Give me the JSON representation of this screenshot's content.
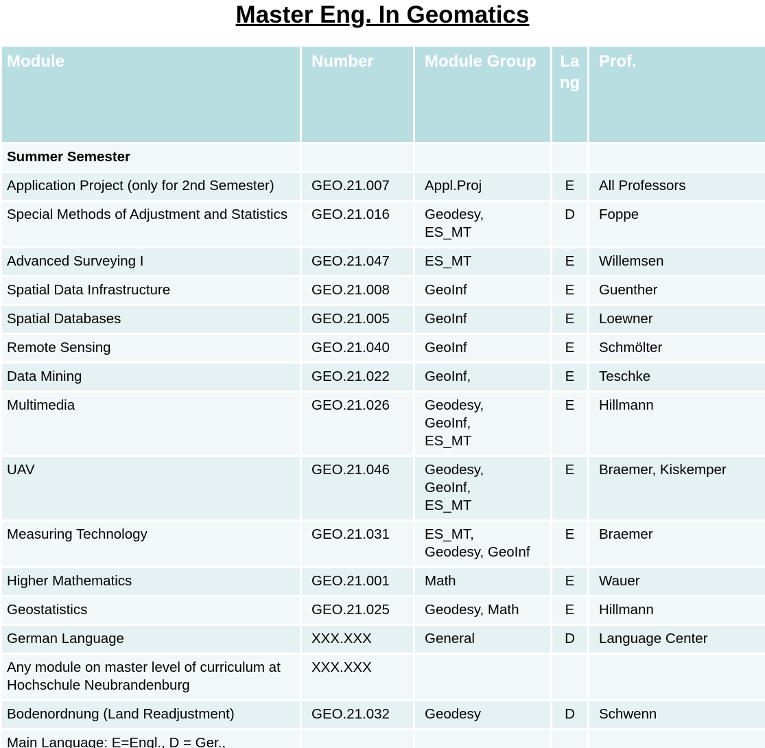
{
  "header": {
    "title": "Master Eng. In Geomatics"
  },
  "table": {
    "columns": [
      "Module",
      "Number",
      "Module Group",
      "Lang",
      "Prof."
    ],
    "section": "Summer Semester",
    "rows": [
      [
        "Application Project (only for 2nd Semester)",
        "GEO.21.007",
        "Appl.Proj",
        "E",
        "All Professors"
      ],
      [
        "Special Methods of Adjustment and Statistics",
        "GEO.21.016",
        "Geodesy,\nES_MT",
        "D",
        "Foppe"
      ],
      [
        "Advanced Surveying I",
        "GEO.21.047",
        "ES_MT",
        "E",
        "Willemsen"
      ],
      [
        "Spatial Data Infrastructure",
        "GEO.21.008",
        "GeoInf",
        "E",
        "Guenther"
      ],
      [
        "Spatial Databases",
        "GEO.21.005",
        "GeoInf",
        "E",
        "Loewner"
      ],
      [
        "Remote Sensing",
        "GEO.21.040",
        "GeoInf",
        "E",
        "Schmölter"
      ],
      [
        "Data Mining",
        "GEO.21.022",
        "GeoInf,",
        "E",
        "Teschke"
      ],
      [
        "Multimedia",
        "GEO.21.026",
        "Geodesy,\nGeoInf,\nES_MT",
        "E",
        "Hillmann"
      ],
      [
        "UAV",
        "GEO.21.046",
        "Geodesy,\nGeoInf,\nES_MT",
        "E",
        "Braemer, Kiskemper"
      ],
      [
        "Measuring Technology",
        "GEO.21.031",
        "ES_MT,\nGeodesy, GeoInf",
        "E",
        "Braemer"
      ],
      [
        "Higher Mathematics",
        "GEO.21.001",
        "Math",
        "E",
        "Wauer"
      ],
      [
        "Geostatistics",
        "GEO.21.025",
        "Geodesy, Math",
        "E",
        "Hillmann"
      ],
      [
        "German Language",
        "XXX.XXX",
        "General",
        "D",
        "Language Center"
      ],
      [
        "Any module on master level of curriculum at Hochschule Neubrandenburg",
        "XXX.XXX",
        null,
        null,
        null
      ],
      [
        "Bodenordnung (Land Readjustment)",
        "GEO.21.032",
        "Geodesy",
        "D",
        "Schwenn"
      ]
    ],
    "footnote": "Main Language: E=Engl., D = Ger.,"
  }
}
